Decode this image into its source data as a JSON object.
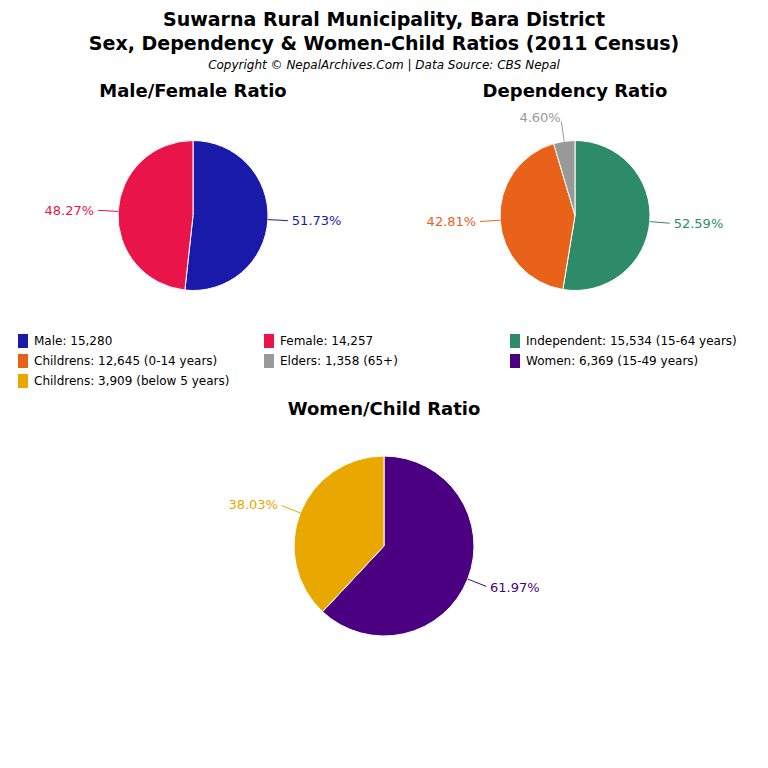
{
  "title": "Suwarna Rural Municipality, Bara District",
  "subtitle": "Sex, Dependency & Women-Child Ratios (2011 Census)",
  "annotations": [
    "Copyright © NepalArchives.Com | Data Source: CBS Nepal"
  ],
  "chart_data": [
    {
      "type": "pie",
      "title": "Male/Female Ratio",
      "categories": [
        "Male: 15,280",
        "Female: 14,257"
      ],
      "values": [
        51.73,
        48.27
      ],
      "value_labels": [
        "51.73%",
        "48.27%"
      ],
      "colors": [
        "#1a1aaa",
        "#e8144a"
      ],
      "data_labels": true
    },
    {
      "type": "pie",
      "title": "Dependency Ratio",
      "categories": [
        "Independent: 15,534 (15-64 years)",
        "Childrens: 12,645 (0-14 years)",
        "Elders: 1,358 (65+)"
      ],
      "values": [
        52.59,
        42.81,
        4.6
      ],
      "value_labels": [
        "52.59%",
        "42.81%",
        "4.60%"
      ],
      "colors": [
        "#2e8b6a",
        "#e8621a",
        "#999999"
      ],
      "data_labels": true
    },
    {
      "type": "pie",
      "title": "Women/Child Ratio",
      "categories": [
        "Women: 6,369 (15-49 years)",
        "Childrens: 3,909 (below 5 years)"
      ],
      "values": [
        61.97,
        38.03
      ],
      "value_labels": [
        "61.97%",
        "38.03%"
      ],
      "colors": [
        "#4b0082",
        "#e8a800"
      ],
      "data_labels": true
    }
  ]
}
